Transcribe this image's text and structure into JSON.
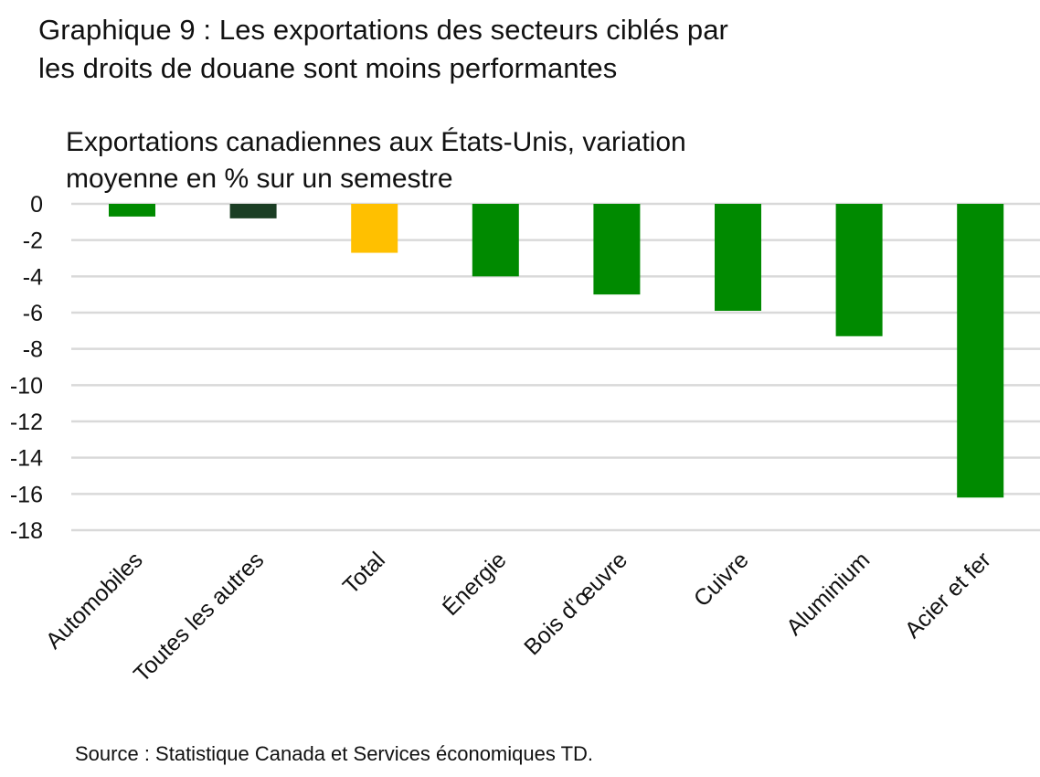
{
  "colors": {
    "green": "#008a00",
    "dark_green": "#1b3e24",
    "yellow": "#ffc000",
    "grid": "#d9d9d9"
  },
  "chart_data": {
    "type": "bar",
    "title": "Graphique 9 : Les exportations des secteurs ciblés par les droits de douane sont moins performantes",
    "title_lines": [
      "Graphique 9 : Les exportations des secteurs ciblés par",
      "les droits de douane sont moins performantes"
    ],
    "ylabel_lines": [
      "Exportations canadiennes aux États-Unis, variation",
      "moyenne en % sur un semestre"
    ],
    "xlabel": "",
    "categories": [
      "Automobiles",
      "Toutes les autres",
      "Total",
      "Énergie",
      "Bois d’œuvre",
      "Cuivre",
      "Aluminium",
      "Acier et fer"
    ],
    "values": [
      -0.7,
      -0.8,
      -2.7,
      -4.0,
      -5.0,
      -5.9,
      -7.3,
      -16.2
    ],
    "bar_colors": [
      "#008a00",
      "#1b3e24",
      "#ffc000",
      "#008a00",
      "#008a00",
      "#008a00",
      "#008a00",
      "#008a00"
    ],
    "ylim": [
      -18,
      0
    ],
    "yticks": [
      0,
      -2,
      -4,
      -6,
      -8,
      -10,
      -12,
      -14,
      -16,
      -18
    ],
    "grid": true,
    "source": "Source : Statistique Canada et Services économiques TD."
  }
}
